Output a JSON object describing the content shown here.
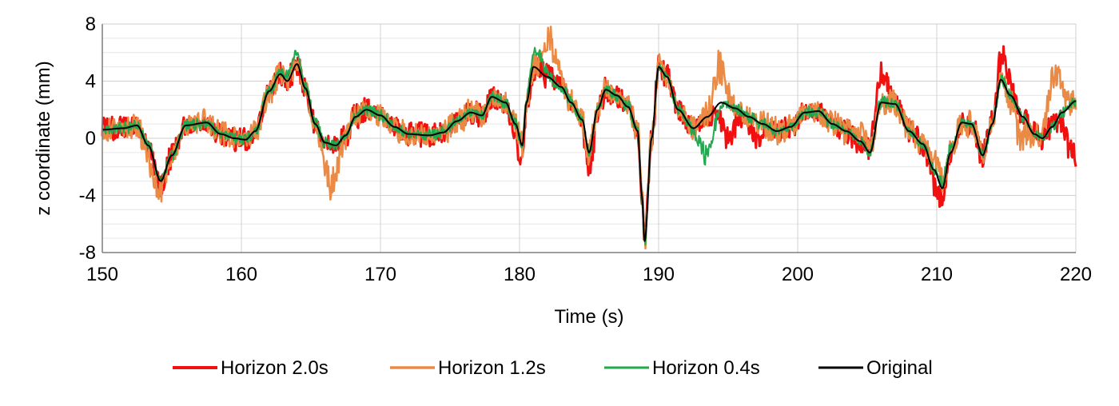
{
  "chart_data": {
    "type": "line",
    "title": "",
    "xlabel": "Time (s)",
    "ylabel": "z coordinate (mm)",
    "xlim": [
      150,
      220
    ],
    "ylim": [
      -8,
      8
    ],
    "xticks": [
      150,
      160,
      170,
      180,
      190,
      200,
      210,
      220
    ],
    "yticks": [
      -8,
      -4,
      0,
      4,
      8
    ],
    "x_tick_labels": [
      "150",
      "160",
      "170",
      "180",
      "190",
      "200",
      "210",
      "220"
    ],
    "y_tick_labels": [
      "-8",
      "-4",
      "0",
      "4",
      "8"
    ],
    "grid": true,
    "legend_position": "bottom",
    "original_anchors": [
      [
        150,
        0.6
      ],
      [
        151.5,
        0.7
      ],
      [
        152.5,
        0.9
      ],
      [
        153.3,
        -0.5
      ],
      [
        154.2,
        -3.0
      ],
      [
        155,
        -1.2
      ],
      [
        156,
        0.9
      ],
      [
        157.5,
        1.1
      ],
      [
        158.5,
        0.3
      ],
      [
        159.5,
        0.0
      ],
      [
        160.3,
        -0.1
      ],
      [
        161,
        0.5
      ],
      [
        162,
        3.3
      ],
      [
        162.8,
        4.5
      ],
      [
        163.3,
        4.0
      ],
      [
        164,
        5.2
      ],
      [
        164.6,
        3.5
      ],
      [
        165.3,
        1.0
      ],
      [
        166,
        -0.3
      ],
      [
        166.8,
        -0.5
      ],
      [
        167.5,
        0.2
      ],
      [
        168.2,
        1.5
      ],
      [
        169,
        2.0
      ],
      [
        170,
        1.6
      ],
      [
        171,
        0.8
      ],
      [
        172,
        0.3
      ],
      [
        173.5,
        0.2
      ],
      [
        174.5,
        0.4
      ],
      [
        175.5,
        1.2
      ],
      [
        176.5,
        1.8
      ],
      [
        177.3,
        1.6
      ],
      [
        178,
        2.9
      ],
      [
        179,
        2.5
      ],
      [
        179.7,
        1.0
      ],
      [
        180.2,
        -0.5
      ],
      [
        180.5,
        2.5
      ],
      [
        181,
        5.0
      ],
      [
        182,
        4.3
      ],
      [
        183,
        3.6
      ],
      [
        183.7,
        2.5
      ],
      [
        184.5,
        1.3
      ],
      [
        185,
        -1.0
      ],
      [
        185.6,
        2.0
      ],
      [
        186.2,
        3.4
      ],
      [
        187,
        3.0
      ],
      [
        187.8,
        2.2
      ],
      [
        188.5,
        0.5
      ],
      [
        188.8,
        -4.0
      ],
      [
        189,
        -7.2
      ],
      [
        189.5,
        0.0
      ],
      [
        190,
        5.0
      ],
      [
        190.6,
        4.3
      ],
      [
        191.4,
        2.0
      ],
      [
        192.5,
        0.7
      ],
      [
        193.5,
        1.5
      ],
      [
        194.5,
        2.5
      ],
      [
        195.5,
        2.1
      ],
      [
        196.5,
        1.5
      ],
      [
        197.5,
        1.0
      ],
      [
        198.5,
        0.5
      ],
      [
        199.5,
        0.8
      ],
      [
        200.5,
        1.8
      ],
      [
        201.5,
        1.9
      ],
      [
        202.5,
        1.0
      ],
      [
        203.5,
        0.5
      ],
      [
        204.5,
        -0.2
      ],
      [
        205.2,
        -1.0
      ],
      [
        206,
        2.5
      ],
      [
        207,
        2.4
      ],
      [
        208,
        0.5
      ],
      [
        209,
        -0.4
      ],
      [
        209.8,
        -2.2
      ],
      [
        210.4,
        -3.5
      ],
      [
        211,
        -1.0
      ],
      [
        211.8,
        1.1
      ],
      [
        212.5,
        1.0
      ],
      [
        213.3,
        -1.2
      ],
      [
        214,
        1.0
      ],
      [
        214.6,
        4.1
      ],
      [
        215.3,
        3.0
      ],
      [
        216.2,
        1.5
      ],
      [
        217,
        0.3
      ],
      [
        217.6,
        0.0
      ],
      [
        218.3,
        0.8
      ],
      [
        219,
        1.8
      ],
      [
        220,
        2.6
      ]
    ],
    "series": [
      {
        "name": "Horizon 2.0s",
        "color": "#f01010",
        "stroke_width": 3,
        "noise_amp": 0.9,
        "offsets": [
          [
            154,
            -0.6
          ],
          [
            180,
            -1.6
          ],
          [
            185,
            -1.5
          ],
          [
            195,
            -3.0
          ],
          [
            197,
            -1.8
          ],
          [
            206,
            2.5
          ],
          [
            210,
            -1.4
          ],
          [
            214.8,
            2.0
          ],
          [
            219.8,
            -4.5
          ]
        ]
      },
      {
        "name": "Horizon 1.2s",
        "color": "#eb8a44",
        "stroke_width": 2.5,
        "noise_amp": 1.0,
        "offsets": [
          [
            153.7,
            -1.5
          ],
          [
            166.5,
            -3.3
          ],
          [
            182.2,
            3.2
          ],
          [
            194.4,
            3.0
          ],
          [
            204.7,
            1.0
          ],
          [
            210,
            1.0
          ],
          [
            216,
            -2.0
          ],
          [
            218.5,
            4.5
          ]
        ]
      },
      {
        "name": "Horizon 0.4s",
        "color": "#22a84e",
        "stroke_width": 2,
        "noise_amp": 0.45,
        "offsets": [
          [
            163.7,
            1.0
          ],
          [
            181.3,
            1.3
          ],
          [
            189,
            -0.2
          ],
          [
            193.5,
            -3.3
          ],
          [
            210.7,
            0.6
          ]
        ]
      },
      {
        "name": "Original",
        "color": "#000000",
        "stroke_width": 2,
        "noise_amp": 0.0,
        "offsets": []
      }
    ]
  }
}
